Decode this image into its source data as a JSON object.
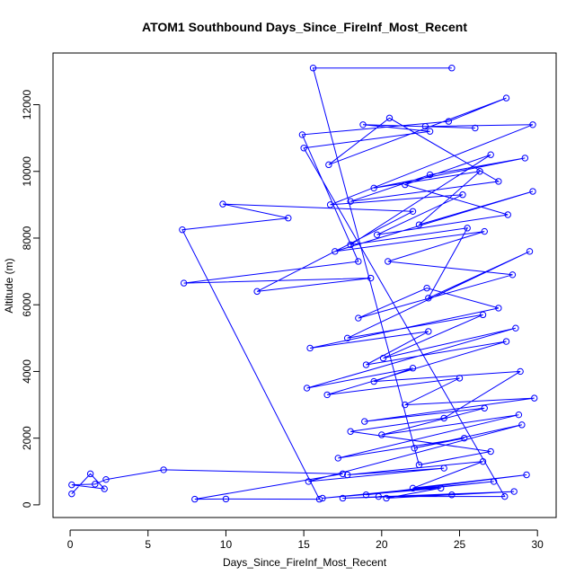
{
  "chart_data": {
    "type": "line",
    "title": "ATOM1 Southbound Days_Since_FireInf_Most_Recent",
    "xlabel": "Days_Since_FireInf_Most_Recent",
    "ylabel": "Altitude (m)",
    "xlim": [
      -1.1,
      31.2
    ],
    "ylim": [
      -380,
      13550
    ],
    "xticks": [
      0,
      5,
      10,
      15,
      20,
      25,
      30
    ],
    "yticks": [
      0,
      2000,
      4000,
      6000,
      8000,
      10000,
      12000
    ],
    "grid": false,
    "legend": "none",
    "marker": "open-circle",
    "color": "#0000ff",
    "series": [
      {
        "x": [
          0.1,
          1.3,
          2.2,
          0.1,
          1.6,
          2.3,
          6.0,
          17.5,
          8.0,
          10.0,
          16.0,
          7.2,
          14.0,
          9.8,
          22.0,
          12.0,
          19.3,
          7.3,
          18.5,
          14.9,
          24.3,
          28.0,
          16.6,
          20.5,
          27.5,
          18.0,
          23.1,
          29.2,
          19.5,
          26.3,
          22.4,
          29.7,
          17.0,
          26.6,
          20.4,
          28.4,
          18.5,
          22.9,
          27.5,
          15.4,
          23.0,
          19.0,
          28.0,
          16.5,
          25.0,
          21.5,
          29.8,
          18.9,
          26.6,
          20.0,
          28.8,
          17.2,
          25.3,
          22.1,
          29.0,
          15.3,
          24.0,
          17.8,
          26.5,
          22.0,
          29.3,
          19.0,
          27.2,
          16.2,
          23.8,
          20.3,
          28.5,
          17.5,
          24.5,
          19.8,
          27.9,
          15.0,
          23.1,
          18.8,
          26.0,
          22.8,
          29.7,
          16.7,
          25.2,
          19.7,
          28.1,
          21.5,
          27.0,
          18.0,
          25.5,
          23.0,
          29.5,
          17.8,
          26.5,
          20.1,
          28.6,
          15.2,
          22.0,
          19.5,
          28.9,
          24.0,
          18.0,
          27.0,
          22.4,
          15.6,
          24.5
        ],
        "y": [
          330,
          930,
          480,
          600,
          620,
          760,
          1050,
          930,
          170,
          175,
          170,
          8250,
          8600,
          9020,
          8800,
          6400,
          6800,
          6650,
          7300,
          11100,
          11500,
          12200,
          10200,
          11600,
          9700,
          9100,
          9900,
          10400,
          9500,
          10000,
          8400,
          9400,
          7600,
          8200,
          7300,
          6900,
          5600,
          6500,
          5900,
          4700,
          5200,
          4200,
          4900,
          3300,
          3800,
          3000,
          3200,
          2500,
          2900,
          2100,
          2700,
          1400,
          2000,
          1700,
          2400,
          700,
          1100,
          900,
          1300,
          500,
          900,
          300,
          700,
          200,
          500,
          200,
          400,
          200,
          300,
          250,
          250,
          10700,
          11200,
          11400,
          11300,
          11350,
          11400,
          9000,
          9300,
          8100,
          8700,
          9600,
          10500,
          7800,
          8300,
          6200,
          7600,
          5000,
          5700,
          4400,
          5300,
          3500,
          4100,
          3700,
          4000,
          2600,
          2200,
          1600,
          1200,
          13100,
          13100
        ]
      }
    ]
  }
}
